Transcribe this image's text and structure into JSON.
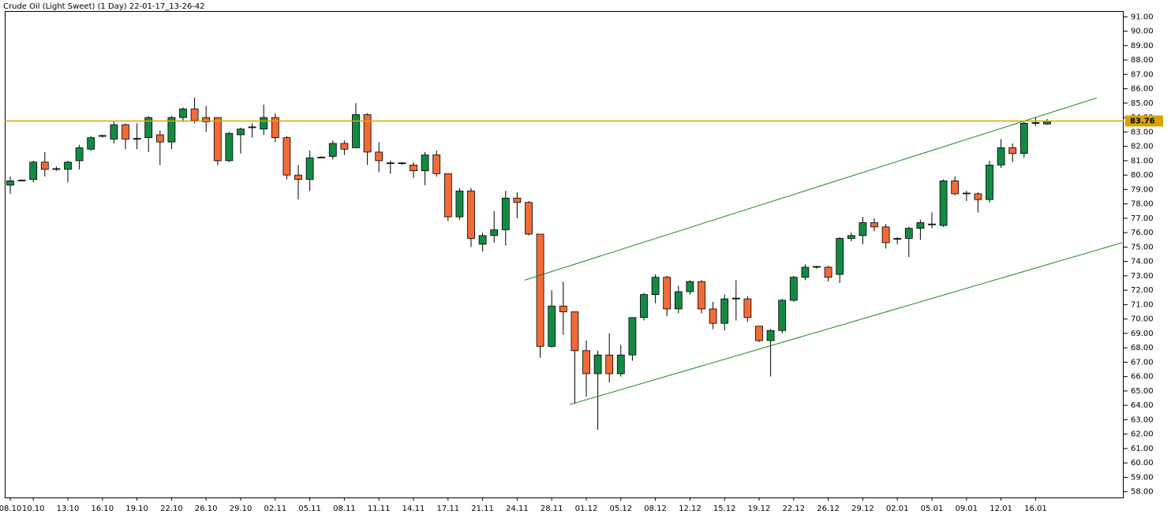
{
  "chart_data": {
    "type": "candlestick",
    "title": "Crude Oil (Light Sweet) (1 Day) 22-01-17_13-26-42",
    "categories": [
      "08.10",
      null,
      "10.10",
      null,
      null,
      "13.10",
      null,
      null,
      "16.10",
      null,
      null,
      "19.10",
      null,
      null,
      "22.10",
      null,
      null,
      "26.10",
      null,
      null,
      "29.10",
      null,
      null,
      "02.11",
      null,
      null,
      "05.11",
      null,
      null,
      "08.11",
      null,
      null,
      "11.11",
      null,
      null,
      "14.11",
      null,
      null,
      "17.11",
      null,
      null,
      "21.11",
      null,
      null,
      "24.11",
      null,
      null,
      "28.11",
      null,
      null,
      "01.12",
      null,
      null,
      "05.12",
      null,
      null,
      "08.12",
      null,
      null,
      "12.12",
      null,
      null,
      "15.12",
      null,
      null,
      "19.12",
      null,
      null,
      "22.12",
      null,
      null,
      "26.12",
      null,
      null,
      "29.12",
      null,
      null,
      "02.01",
      null,
      null,
      "05.01",
      null,
      null,
      "09.01",
      null,
      null,
      "12.01",
      null,
      null,
      "16.01",
      null
    ],
    "open": [
      79.3,
      79.6,
      79.7,
      80.9,
      80.4,
      80.4,
      81.0,
      81.8,
      82.7,
      82.5,
      83.5,
      82.5,
      82.6,
      82.8,
      82.3,
      84.0,
      84.6,
      84.0,
      84.0,
      81.0,
      82.8,
      83.3,
      83.2,
      84.0,
      82.6,
      80.0,
      79.7,
      81.2,
      81.3,
      82.2,
      81.9,
      84.2,
      81.6,
      80.8,
      80.8,
      80.7,
      80.3,
      81.4,
      80.1,
      77.1,
      78.9,
      75.2,
      75.8,
      76.2,
      78.4,
      78.1,
      75.9,
      68.1,
      70.9,
      70.5,
      67.8,
      66.2,
      67.5,
      66.2,
      67.5,
      70.1,
      71.7,
      72.9,
      70.7,
      71.9,
      72.6,
      70.7,
      69.7,
      71.4,
      71.4,
      69.5,
      68.5,
      69.2,
      71.3,
      72.9,
      73.6,
      73.6,
      73.1,
      75.6,
      75.8,
      76.7,
      76.4,
      75.55,
      75.6,
      76.3,
      76.55,
      76.5,
      79.6,
      78.7,
      78.7,
      78.3,
      80.7,
      81.9,
      81.5,
      83.6,
      83.55
    ],
    "high": [
      79.9,
      79.7,
      81.0,
      81.6,
      80.6,
      81.0,
      82.1,
      82.7,
      82.8,
      83.7,
      83.6,
      83.6,
      84.1,
      83.1,
      84.1,
      84.7,
      85.4,
      84.8,
      84.0,
      83.0,
      83.3,
      83.6,
      84.9,
      84.3,
      82.7,
      80.7,
      81.7,
      81.3,
      82.4,
      82.4,
      85.0,
      84.3,
      82.3,
      81.0,
      80.9,
      80.9,
      81.6,
      81.7,
      80.1,
      79.1,
      79.1,
      76.0,
      77.5,
      78.9,
      78.8,
      78.2,
      75.9,
      72.0,
      72.6,
      70.5,
      68.5,
      67.8,
      69.0,
      68.2,
      70.1,
      71.8,
      73.1,
      73.0,
      72.3,
      72.7,
      72.7,
      71.2,
      71.7,
      72.7,
      71.6,
      69.5,
      69.3,
      71.4,
      73.0,
      73.8,
      73.7,
      73.7,
      75.7,
      76.0,
      77.1,
      77.0,
      76.6,
      75.7,
      76.4,
      76.9,
      77.4,
      79.7,
      79.9,
      78.9,
      78.8,
      81.0,
      82.5,
      82.2,
      83.7,
      84.0,
      83.9
    ],
    "low": [
      78.7,
      79.6,
      79.5,
      79.9,
      80.3,
      79.5,
      80.4,
      81.7,
      82.6,
      82.2,
      81.8,
      81.8,
      81.6,
      80.7,
      81.8,
      83.7,
      83.6,
      83.0,
      80.7,
      80.9,
      81.5,
      82.6,
      82.8,
      82.3,
      79.7,
      78.3,
      78.9,
      81.2,
      81.1,
      81.4,
      81.9,
      80.7,
      80.2,
      80.1,
      80.7,
      79.8,
      79.3,
      79.9,
      76.8,
      76.9,
      75.0,
      74.7,
      75.3,
      75.1,
      77.0,
      75.8,
      67.3,
      68.0,
      68.9,
      64.1,
      64.6,
      62.3,
      65.6,
      66.0,
      67.1,
      69.9,
      71.1,
      70.2,
      70.4,
      71.7,
      70.4,
      69.3,
      69.2,
      69.9,
      69.8,
      68.4,
      66.0,
      69.0,
      71.2,
      72.7,
      73.5,
      72.6,
      72.5,
      75.4,
      75.2,
      76.1,
      74.9,
      75.2,
      74.3,
      75.5,
      76.3,
      76.4,
      78.6,
      78.2,
      77.4,
      78.1,
      80.5,
      80.9,
      81.2,
      83.4,
      83.5
    ],
    "close": [
      79.6,
      79.65,
      80.9,
      80.4,
      80.45,
      80.9,
      81.9,
      82.6,
      82.75,
      83.5,
      82.5,
      82.55,
      84.0,
      82.3,
      84.0,
      84.6,
      83.8,
      83.7,
      81.0,
      82.9,
      83.2,
      83.35,
      84.0,
      82.6,
      80.0,
      79.7,
      81.2,
      81.25,
      82.2,
      81.8,
      84.2,
      81.6,
      81.0,
      80.85,
      80.85,
      80.3,
      81.4,
      80.1,
      77.1,
      78.9,
      75.6,
      75.8,
      76.2,
      78.4,
      78.1,
      75.9,
      68.1,
      70.9,
      70.5,
      67.8,
      66.2,
      67.5,
      66.2,
      67.5,
      70.1,
      71.7,
      72.9,
      70.7,
      71.9,
      72.6,
      70.7,
      69.7,
      71.4,
      71.45,
      70.1,
      68.5,
      69.2,
      71.3,
      72.9,
      73.6,
      73.65,
      72.9,
      75.6,
      75.8,
      76.7,
      76.4,
      75.3,
      75.6,
      76.3,
      76.7,
      76.6,
      79.6,
      78.7,
      78.75,
      78.3,
      80.7,
      81.9,
      81.5,
      83.6,
      83.65,
      83.76
    ],
    "up_color": "#138a43",
    "down_color": "#f26a36",
    "price_line": 83.76,
    "price_line_color": "#d9a400",
    "trendlines": [
      {
        "x": [
          44.65,
          94.3
        ],
        "y": [
          72.7,
          85.36
        ],
        "color": "#1f8a1f"
      },
      {
        "x": [
          48.55,
          96.5
        ],
        "y": [
          64.05,
          75.3
        ],
        "color": "#1f8a1f"
      }
    ],
    "ylim": [
      57.6,
      91.4
    ],
    "yticks": [
      {
        "value": 58,
        "label": "58.00"
      },
      {
        "value": 59,
        "label": "59.00"
      },
      {
        "value": 60,
        "label": "60.00"
      },
      {
        "value": 61,
        "label": "61.00"
      },
      {
        "value": 62,
        "label": "62.00"
      },
      {
        "value": 63,
        "label": "63.00"
      },
      {
        "value": 64,
        "label": "64.00"
      },
      {
        "value": 65,
        "label": "65.00"
      },
      {
        "value": 66,
        "label": "66.00"
      },
      {
        "value": 67,
        "label": "67.00"
      },
      {
        "value": 68,
        "label": "68.00"
      },
      {
        "value": 69,
        "label": "69.00"
      },
      {
        "value": 70,
        "label": "70.00"
      },
      {
        "value": 71,
        "label": "71.00"
      },
      {
        "value": 72,
        "label": "72.00"
      },
      {
        "value": 73,
        "label": "73.00"
      },
      {
        "value": 74,
        "label": "74.00"
      },
      {
        "value": 75,
        "label": "75.00"
      },
      {
        "value": 76,
        "label": "76.00"
      },
      {
        "value": 77,
        "label": "77.00"
      },
      {
        "value": 78,
        "label": "78.00"
      },
      {
        "value": 79,
        "label": "79.00"
      },
      {
        "value": 80,
        "label": "80.00"
      },
      {
        "value": 81,
        "label": "81.00"
      },
      {
        "value": 82,
        "label": "82.00"
      },
      {
        "value": 83,
        "label": "83.00"
      },
      {
        "value": 84,
        "label": "84.00"
      },
      {
        "value": 85,
        "label": "85.00"
      },
      {
        "value": 86,
        "label": "86.00"
      },
      {
        "value": 87,
        "label": "87.00"
      },
      {
        "value": 88,
        "label": "88.00"
      },
      {
        "value": 89,
        "label": "89.00"
      },
      {
        "value": 90,
        "label": "90.00"
      },
      {
        "value": 91,
        "label": "91.00"
      }
    ]
  }
}
